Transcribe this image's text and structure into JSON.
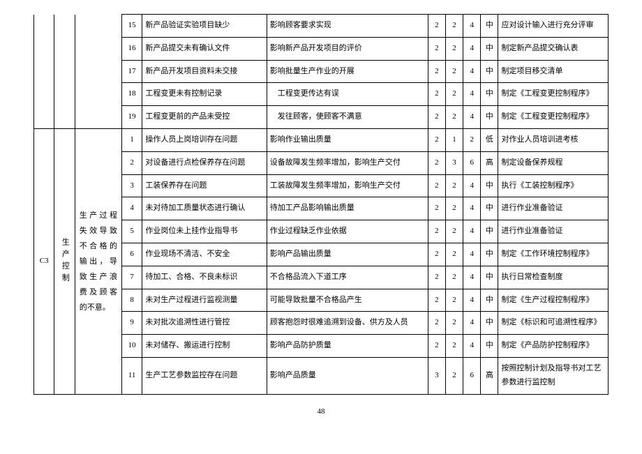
{
  "page_number": "48",
  "section": {
    "code": "C3",
    "category": "生产控制",
    "description_col": "生产过程失效导致不合格的输出，导致生产浪费及顾客的不意。"
  },
  "upper_rows": [
    {
      "num": "15",
      "issue": "新产品验证实验项目缺少",
      "impact": "影响顾客要求实现",
      "s1": "2",
      "s2": "2",
      "s3": "4",
      "level": "中",
      "action": "应对设计输入进行充分评审"
    },
    {
      "num": "16",
      "issue": "新产品提交未有确认文件",
      "impact": "影响新产品开发项目的评价",
      "s1": "2",
      "s2": "2",
      "s3": "4",
      "level": "中",
      "action": "制定新产品提交确认表"
    },
    {
      "num": "17",
      "issue": "新产品开发项目资料未交接",
      "impact": "影响批量生产作业的开展",
      "s1": "2",
      "s2": "2",
      "s3": "4",
      "level": "中",
      "action": "制定项目移交清单"
    },
    {
      "num": "18",
      "issue": "工程变更未有控制记录",
      "impact": "　工程变更传达有误",
      "s1": "2",
      "s2": "2",
      "s3": "4",
      "level": "中",
      "action": "制定《工程变更控制程序》"
    },
    {
      "num": "19",
      "issue": "工程变更前的产品未受控",
      "impact": "　发往顾客，使顾客不满意",
      "s1": "2",
      "s2": "2",
      "s3": "4",
      "level": "中",
      "action": "制定《工程变更控制程序》"
    }
  ],
  "lower_rows": [
    {
      "num": "1",
      "issue": "操作人员上岗培训存在问题",
      "impact": "影响作业输出质量",
      "s1": "2",
      "s2": "1",
      "s3": "2",
      "level": "低",
      "action": "对作业人员培训进考核"
    },
    {
      "num": "2",
      "issue": "对设备进行点检保养存在问题",
      "impact": "设备故障发生频率增加，影响生产交付",
      "s1": "2",
      "s2": "3",
      "s3": "6",
      "level": "高",
      "action": "制定设备保养规程"
    },
    {
      "num": "3",
      "issue": "工装保养存在问题",
      "impact": "工装故障发生频率增加，影响生产交付",
      "s1": "2",
      "s2": "2",
      "s3": "4",
      "level": "中",
      "action": "执行《工装控制程序》"
    },
    {
      "num": "4",
      "issue": "未对待加工质量状态进行确认",
      "impact": "待加工产品影响输出质量",
      "s1": "2",
      "s2": "2",
      "s3": "4",
      "level": "中",
      "action": "进行作业准备验证"
    },
    {
      "num": "5",
      "issue": "作业岗位未上挂作业指导书",
      "impact": "作业过程缺乏作业依据",
      "s1": "2",
      "s2": "2",
      "s3": "4",
      "level": "中",
      "action": "进行作业准备验证"
    },
    {
      "num": "6",
      "issue": "作业现场不清洁、不安全",
      "impact": "影响产品输出质量",
      "s1": "2",
      "s2": "2",
      "s3": "4",
      "level": "中",
      "action": "制定《工作环境控制程序》"
    },
    {
      "num": "7",
      "issue": "待加工、合格、不良未标识",
      "impact": "不合格品流入下道工序",
      "s1": "2",
      "s2": "2",
      "s3": "4",
      "level": "中",
      "action": "执行日常检查制度"
    },
    {
      "num": "8",
      "issue": "未对生产过程进行监视测量",
      "impact": "可能导致批量不合格品产生",
      "s1": "2",
      "s2": "2",
      "s3": "4",
      "level": "中",
      "action": "制定《生产过程控制程序》"
    },
    {
      "num": "9",
      "issue": "未对批次追溯性进行管控",
      "impact": "顾客抱怨时很难追溯到设备、供方及人员",
      "s1": "2",
      "s2": "2",
      "s3": "4",
      "level": "中",
      "action": "制定《标识和可追溯性程序》"
    },
    {
      "num": "10",
      "issue": "未对储存、搬运进行控制",
      "impact": "影响产品防护质量",
      "s1": "2",
      "s2": "2",
      "s3": "4",
      "level": "中",
      "action": "制定《产品防护控制程序》"
    },
    {
      "num": "11",
      "issue": "生产工艺参数监控存在问题",
      "impact": "影响产品质量",
      "s1": "3",
      "s2": "2",
      "s3": "6",
      "level": "高",
      "action": "按照控制计划及指导书对工艺参数进行监控制"
    }
  ]
}
